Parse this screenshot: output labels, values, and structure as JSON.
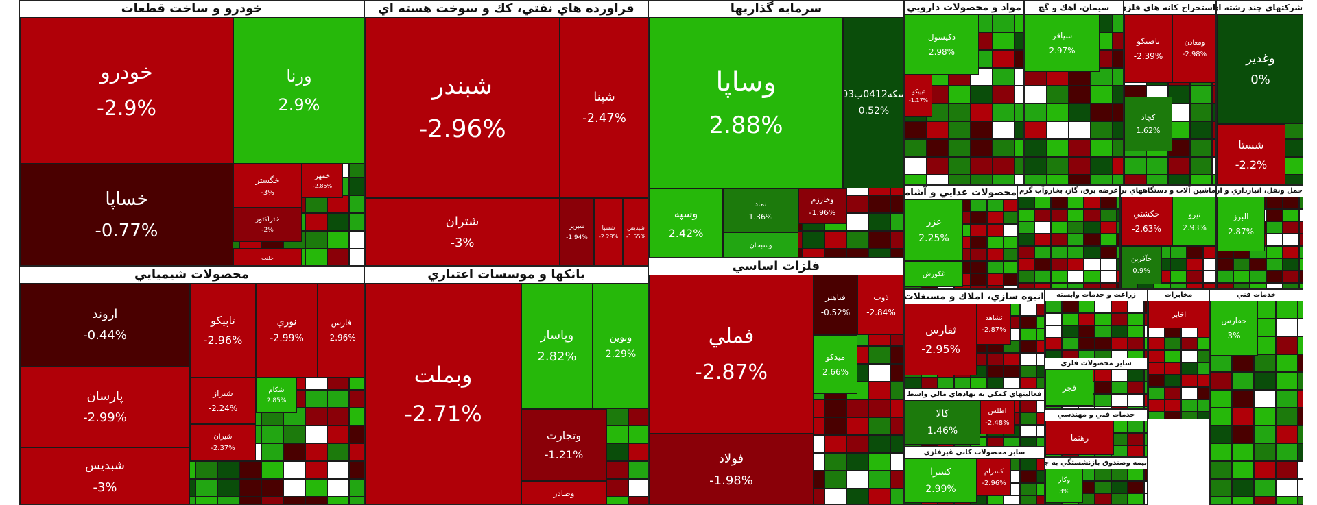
{
  "chart_data": {
    "type": "treemap",
    "colors": {
      "strong_negative": "#b00008",
      "negative": "#8a0008",
      "weak_negative": "#4a0000",
      "neutral": "#0a4d0a",
      "weak_positive": "#1c7a0c",
      "positive": "#22a612",
      "strong_positive": "#26b80a"
    },
    "sectors": [
      {
        "name": "خودرو و ساخت قطعات",
        "tiles": [
          {
            "symbol": "خودرو",
            "change": "-2.9%",
            "tone": "strong_negative"
          },
          {
            "symbol": "ورنا",
            "change": "2.9%",
            "tone": "strong_positive"
          },
          {
            "symbol": "خساپا",
            "change": "-0.77%",
            "tone": "weak_negative"
          },
          {
            "symbol": "خگستر",
            "change": "-3%",
            "tone": "strong_negative"
          },
          {
            "symbol": "خمهر",
            "change": "-2.85%",
            "tone": "strong_negative"
          },
          {
            "symbol": "ختراکتور",
            "change": "-2%",
            "tone": "negative"
          },
          {
            "symbol": "خلنت",
            "change": "",
            "tone": "strong_negative"
          }
        ]
      },
      {
        "name": "فراورده هاي نفتي، كك و سوخت هسته اي",
        "tiles": [
          {
            "symbol": "شبندر",
            "change": "-2.96%",
            "tone": "strong_negative"
          },
          {
            "symbol": "شپنا",
            "change": "-2.47%",
            "tone": "strong_negative"
          },
          {
            "symbol": "شتران",
            "change": "-3%",
            "tone": "strong_negative"
          },
          {
            "symbol": "شبريز",
            "change": "-1.94%",
            "tone": "negative"
          },
          {
            "symbol": "شسپا",
            "change": "-2.28%",
            "tone": "strong_negative"
          },
          {
            "symbol": "شپديس",
            "change": "-1.55%",
            "tone": "strong_negative"
          }
        ]
      },
      {
        "name": "سرمايه گذاريها",
        "tiles": [
          {
            "symbol": "وساپا",
            "change": "2.88%",
            "tone": "strong_positive"
          },
          {
            "symbol": "سكه0412ب03",
            "change": "0.52%",
            "tone": "neutral"
          },
          {
            "symbol": "وسپه",
            "change": "2.42%",
            "tone": "strong_positive"
          },
          {
            "symbol": "نماد",
            "change": "1.36%",
            "tone": "weak_positive"
          },
          {
            "symbol": "وخارزم",
            "change": "-1.96%",
            "tone": "negative"
          },
          {
            "symbol": "وسبحان",
            "change": "",
            "tone": "positive"
          }
        ]
      },
      {
        "name": "محصولات شيميايي",
        "tiles": [
          {
            "symbol": "اروند",
            "change": "-0.44%",
            "tone": "weak_negative"
          },
          {
            "symbol": "تاپيكو",
            "change": "-2.96%",
            "tone": "strong_negative"
          },
          {
            "symbol": "نوري",
            "change": "-2.99%",
            "tone": "strong_negative"
          },
          {
            "symbol": "فارس",
            "change": "-2.96%",
            "tone": "strong_negative"
          },
          {
            "symbol": "پارسان",
            "change": "-2.99%",
            "tone": "strong_negative"
          },
          {
            "symbol": "شيراز",
            "change": "-2.24%",
            "tone": "strong_negative"
          },
          {
            "symbol": "شكام",
            "change": "2.85%",
            "tone": "strong_positive"
          },
          {
            "symbol": "شيران",
            "change": "-2.37%",
            "tone": "strong_negative"
          },
          {
            "symbol": "شبديس",
            "change": "-3%",
            "tone": "strong_negative"
          }
        ]
      },
      {
        "name": "بانكها و موسسات اعتباري",
        "tiles": [
          {
            "symbol": "وبملت",
            "change": "-2.71%",
            "tone": "strong_negative"
          },
          {
            "symbol": "وپاسار",
            "change": "2.82%",
            "tone": "strong_positive"
          },
          {
            "symbol": "ونوين",
            "change": "2.29%",
            "tone": "strong_positive"
          },
          {
            "symbol": "وتجارت",
            "change": "-1.21%",
            "tone": "negative"
          },
          {
            "symbol": "وصادر",
            "change": "",
            "tone": "strong_negative"
          }
        ]
      },
      {
        "name": "فلزات اساسي",
        "tiles": [
          {
            "symbol": "فملي",
            "change": "-2.87%",
            "tone": "strong_negative"
          },
          {
            "symbol": "فباهنر",
            "change": "-0.52%",
            "tone": "weak_negative"
          },
          {
            "symbol": "ذوب",
            "change": "-2.84%",
            "tone": "strong_negative"
          },
          {
            "symbol": "ميدكو",
            "change": "2.66%",
            "tone": "strong_positive"
          },
          {
            "symbol": "فولاد",
            "change": "-1.98%",
            "tone": "negative"
          }
        ]
      },
      {
        "name": "مواد و محصولات دارويي",
        "tiles": [
          {
            "symbol": "دكيسول",
            "change": "2.98%",
            "tone": "strong_positive"
          },
          {
            "symbol": "تيپيكو",
            "change": "-1.17%",
            "tone": "strong_negative"
          }
        ]
      },
      {
        "name": "سيمان، آهك و گچ",
        "tiles": [
          {
            "symbol": "سپاقر",
            "change": "2.97%",
            "tone": "strong_positive"
          }
        ]
      },
      {
        "name": "استخراج كانه هاي فلزي",
        "tiles": [
          {
            "symbol": "تاصيكو",
            "change": "-2.39%",
            "tone": "strong_negative"
          },
          {
            "symbol": "ومعادن",
            "change": "-2.98%",
            "tone": "strong_negative"
          },
          {
            "symbol": "كچاد",
            "change": "1.62%",
            "tone": "weak_positive"
          }
        ]
      },
      {
        "name": "شركتهاي چند رشته اي صنعتي",
        "tiles": [
          {
            "symbol": "وغدير",
            "change": "0%",
            "tone": "neutral"
          },
          {
            "symbol": "شستا",
            "change": "-2.2%",
            "tone": "strong_negative"
          }
        ]
      },
      {
        "name": "محصولات غذايي و آشاميدني به جز قند و شكر",
        "tiles": [
          {
            "symbol": "غزر",
            "change": "2.25%",
            "tone": "strong_positive"
          },
          {
            "symbol": "غكورش",
            "change": "",
            "tone": "strong_positive"
          }
        ]
      },
      {
        "name": "عرضه برق، گاز، بخاروآب گرم",
        "tiles": []
      },
      {
        "name": "ماشين آلات و دستگاههاي برقي",
        "tiles": [
          {
            "symbol": "حكشتي",
            "change": "-2.63%",
            "tone": "strong_negative"
          },
          {
            "symbol": "نيرو",
            "change": "2.93%",
            "tone": "strong_positive"
          },
          {
            "symbol": "حآفرين",
            "change": "0.9%",
            "tone": "weak_positive"
          }
        ]
      },
      {
        "name": "حمل ونقل، انبارداري و ارتباطات",
        "tiles": [
          {
            "symbol": "البرز",
            "change": "2.87%",
            "tone": "strong_positive"
          }
        ]
      },
      {
        "name": "انبوه سازي، املاك و مستغلات",
        "tiles": [
          {
            "symbol": "ثفارس",
            "change": "-2.95%",
            "tone": "strong_negative"
          },
          {
            "symbol": "ثشاهد",
            "change": "-2.87%",
            "tone": "strong_negative"
          }
        ]
      },
      {
        "name": "زراعت و خدمات وابسته",
        "tiles": []
      },
      {
        "name": "ساير محصولات فلزي",
        "tiles": [
          {
            "symbol": "فجر",
            "change": "",
            "tone": "strong_positive"
          }
        ]
      },
      {
        "name": "فعاليتهاي كمكي به نهادهاي مالي واسط",
        "tiles": [
          {
            "symbol": "كالا",
            "change": "1.46%",
            "tone": "weak_positive"
          },
          {
            "symbol": "اطلس",
            "change": "-2.48%",
            "tone": "strong_negative"
          }
        ]
      },
      {
        "name": "خدمات فني و مهندسي",
        "tiles": [
          {
            "symbol": "رهنما",
            "change": "",
            "tone": "strong_negative"
          }
        ]
      },
      {
        "name": "ساير محصولات كاني غيرفلزي",
        "tiles": [
          {
            "symbol": "كسرا",
            "change": "2.99%",
            "tone": "strong_positive"
          },
          {
            "symbol": "كسرام",
            "change": "-2.96%",
            "tone": "strong_negative"
          }
        ]
      },
      {
        "name": "بيمه وصندوق بازنشستگي به جزتامين اجتماعي",
        "tiles": [
          {
            "symbol": "وكار",
            "change": "3%",
            "tone": "strong_positive"
          }
        ]
      },
      {
        "name": "مخابرات",
        "tiles": [
          {
            "symbol": "اخابر",
            "change": "",
            "tone": "strong_negative"
          }
        ]
      },
      {
        "name": "خدمات فني",
        "tiles": [
          {
            "symbol": "حفارس",
            "change": "3%",
            "tone": "strong_positive"
          }
        ]
      }
    ]
  }
}
